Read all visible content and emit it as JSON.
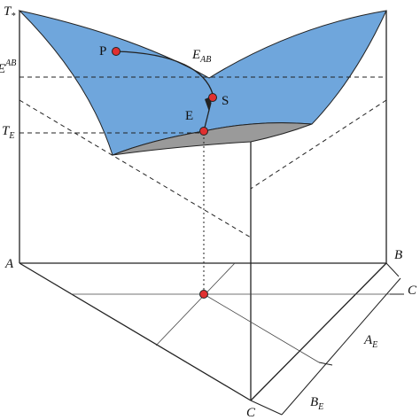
{
  "labels": [
    {
      "main": "T",
      "sub": "*"
    },
    {
      "main": "E",
      "sup": "AB"
    },
    {
      "main": "T",
      "sub": "E"
    },
    {
      "main": "A"
    },
    {
      "main": "B"
    },
    {
      "main": "C"
    },
    {
      "main": "P"
    },
    {
      "main": "E",
      "sub": "AB"
    },
    {
      "main": "S"
    },
    {
      "main": "E"
    },
    {
      "main": "C"
    },
    {
      "main": "A",
      "sub": "E"
    },
    {
      "main": "B",
      "sub": "E"
    }
  ]
}
